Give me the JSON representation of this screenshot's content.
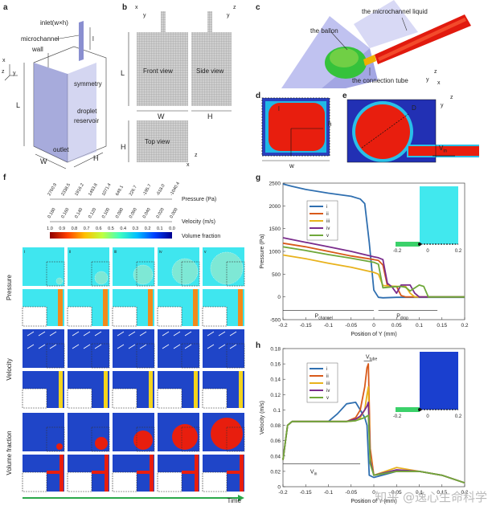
{
  "panel_letters": [
    "a",
    "b",
    "c",
    "d",
    "e",
    "f",
    "g",
    "h"
  ],
  "panel_a": {
    "labels": {
      "inlet": "inlet(w×h)",
      "microchannel": "microchannel",
      "wall": "wall",
      "symmetry": "symmetry",
      "droplet": "droplet",
      "reservoir": "reservoir",
      "outlet": "outlet",
      "L": "L",
      "l": "l",
      "W": "W",
      "H": "H",
      "ax_x": "x",
      "ax_z": "z",
      "ax_y": "y"
    }
  },
  "panel_b": {
    "front": "Front view",
    "side": "Side view",
    "top": "Top view",
    "L": "L",
    "W": "W",
    "H": "H",
    "H2": "H",
    "ax_x": "x",
    "ax_y": "y",
    "ax_z": "z",
    "ax_y2": "y",
    "ax_z2": "z",
    "ax_x2": "x"
  },
  "panel_c": {
    "liquid": "the microchannel liquid",
    "ballon": "the ballon",
    "tube": "the connection tube",
    "ax_z": "z",
    "ax_y": "y",
    "ax_x": "x"
  },
  "panel_d": {
    "l": "l",
    "h": "h",
    "w": "w"
  },
  "panel_e": {
    "D": "D",
    "Vin": "V",
    "Vin_sub": "in",
    "ax_z": "z",
    "ax_y": "y"
  },
  "panel_f": {
    "pressure_ticks": [
      "2760.9",
      "2338.5",
      "1916.2",
      "1493.8",
      "1071.4",
      "649.1",
      "226.7",
      "-195.7",
      "-618.0",
      "-1040.4"
    ],
    "pressure_label": "Pressure (Pa)",
    "velocity_ticks": [
      "0.180",
      "0.160",
      "0.140",
      "0.120",
      "0.100",
      "0.080",
      "0.060",
      "0.040",
      "0.020",
      "0.000"
    ],
    "velocity_label": "Velocity (m/s)",
    "vf_ticks": [
      "1.0",
      "0.9",
      "0.8",
      "0.7",
      "0.6",
      "0.5",
      "0.4",
      "0.3",
      "0.2",
      "0.1",
      "0.0"
    ],
    "vf_label": "Volume fraction",
    "row_labels": [
      "Pressure",
      "Velocity",
      "Volume fraction"
    ],
    "col_labels": [
      "i",
      "ii",
      "iii",
      "iv",
      "v"
    ],
    "time_label": "Time"
  },
  "panel_g_text": {
    "Pchannel": "P",
    "Pchannel_sub": "channel",
    "Pdrop": "P",
    "Pdrop_sub": "drop"
  },
  "panel_h_text": {
    "Vtube": "V",
    "Vtube_sub": "tube",
    "Vin": "V",
    "Vin_sub": "in"
  },
  "inset_ticks": [
    "-0.2",
    "0",
    "0.2"
  ],
  "colors": {
    "i": "#2f6fb0",
    "ii": "#d85a1a",
    "iii": "#e8b21c",
    "iv": "#7a2c8c",
    "v": "#6fa83a"
  },
  "watermark": "知乎 @逸心生命科学",
  "chart_data": [
    {
      "type": "line",
      "panel": "g",
      "xlabel": "Position of Y (mm)",
      "ylabel": "Pressure (Pa)",
      "xlim": [
        -0.2,
        0.2
      ],
      "ylim": [
        -500,
        2500
      ],
      "xticks": [
        "-0.2",
        "-0.15",
        "-0.1",
        "-0.05",
        "0",
        "0.05",
        "0.1",
        "0.15",
        "0.2"
      ],
      "yticks": [
        "-500",
        "0",
        "500",
        "1000",
        "1500",
        "2000",
        "2500"
      ],
      "legend": [
        "i",
        "ii",
        "iii",
        "iv",
        "v"
      ],
      "legend_position": "top-left",
      "series": [
        {
          "name": "i",
          "x": [
            -0.2,
            -0.18,
            -0.15,
            -0.1,
            -0.05,
            -0.03,
            -0.02,
            -0.01,
            0,
            0.01,
            0.02,
            0.05,
            0.1,
            0.15,
            0.2
          ],
          "y": [
            2480,
            2430,
            2360,
            2280,
            2210,
            2150,
            2050,
            1200,
            150,
            -10,
            -20,
            -10,
            -10,
            -10,
            -10
          ]
        },
        {
          "name": "ii",
          "x": [
            -0.2,
            -0.15,
            -0.1,
            -0.05,
            0,
            0.01,
            0.02,
            0.03,
            0.04,
            0.05,
            0.06,
            0.07,
            0.1,
            0.15,
            0.2
          ],
          "y": [
            1180,
            1100,
            1000,
            900,
            820,
            800,
            700,
            250,
            230,
            230,
            30,
            0,
            0,
            0,
            0
          ]
        },
        {
          "name": "iii",
          "x": [
            -0.2,
            -0.15,
            -0.1,
            -0.05,
            0,
            0.01,
            0.02,
            0.05,
            0.07,
            0.08,
            0.09,
            0.1,
            0.12,
            0.14,
            0.15,
            0.2
          ],
          "y": [
            920,
            840,
            740,
            650,
            540,
            500,
            250,
            230,
            230,
            80,
            0,
            0,
            0,
            0,
            0,
            0
          ]
        },
        {
          "name": "iv",
          "x": [
            -0.2,
            -0.15,
            -0.1,
            -0.05,
            0,
            0.01,
            0.02,
            0.03,
            0.04,
            0.05,
            0.06,
            0.08,
            0.09,
            0.1,
            0.11,
            0.15,
            0.2
          ],
          "y": [
            1300,
            1200,
            1100,
            1000,
            880,
            860,
            820,
            300,
            220,
            80,
            260,
            260,
            80,
            0,
            0,
            0,
            0
          ]
        },
        {
          "name": "v",
          "x": [
            -0.2,
            -0.15,
            -0.1,
            -0.05,
            0,
            0.01,
            0.02,
            0.04,
            0.06,
            0.07,
            0.08,
            0.1,
            0.11,
            0.12,
            0.15,
            0.2
          ],
          "y": [
            1100,
            1020,
            930,
            850,
            760,
            720,
            200,
            220,
            230,
            210,
            130,
            260,
            230,
            0,
            0,
            0
          ]
        }
      ],
      "annotations": [
        "P_channel",
        "P_drop"
      ]
    },
    {
      "type": "line",
      "panel": "h",
      "xlabel": "Position of Y (mm)",
      "ylabel": "Velocity (m/s)",
      "xlim": [
        -0.2,
        0.2
      ],
      "ylim": [
        0,
        0.18
      ],
      "xticks": [
        "-0.2",
        "-0.15",
        "-0.1",
        "-0.05",
        "0",
        "0.05",
        "0.1",
        "0.15",
        "0.2"
      ],
      "yticks": [
        "0",
        "0.02",
        "0.04",
        "0.06",
        "0.08",
        "0.1",
        "0.12",
        "0.14",
        "0.16",
        "0.18"
      ],
      "legend": [
        "i",
        "ii",
        "iii",
        "iv",
        "v"
      ],
      "legend_position": "top-left",
      "series": [
        {
          "name": "i",
          "x": [
            -0.2,
            -0.19,
            -0.18,
            -0.15,
            -0.1,
            -0.08,
            -0.06,
            -0.04,
            -0.03,
            -0.02,
            -0.015,
            -0.01,
            0,
            0.05,
            0.1,
            0.15,
            0.2
          ],
          "y": [
            0.035,
            0.08,
            0.085,
            0.085,
            0.085,
            0.095,
            0.108,
            0.11,
            0.1,
            0.09,
            0.08,
            0.015,
            0.012,
            0.02,
            0.02,
            0.015,
            0.005
          ]
        },
        {
          "name": "ii",
          "x": [
            -0.2,
            -0.19,
            -0.18,
            -0.15,
            -0.1,
            -0.06,
            -0.04,
            -0.03,
            -0.02,
            -0.015,
            -0.012,
            -0.008,
            0,
            0.05,
            0.1,
            0.15,
            0.2
          ],
          "y": [
            0.035,
            0.08,
            0.085,
            0.085,
            0.085,
            0.085,
            0.09,
            0.1,
            0.13,
            0.155,
            0.16,
            0.05,
            0.015,
            0.02,
            0.02,
            0.015,
            0.005
          ]
        },
        {
          "name": "iii",
          "x": [
            -0.2,
            -0.19,
            -0.18,
            -0.15,
            -0.1,
            -0.06,
            -0.04,
            -0.03,
            -0.02,
            -0.015,
            -0.012,
            -0.008,
            0,
            0.05,
            0.1,
            0.15,
            0.2
          ],
          "y": [
            0.035,
            0.08,
            0.085,
            0.085,
            0.085,
            0.085,
            0.086,
            0.09,
            0.1,
            0.12,
            0.13,
            0.04,
            0.015,
            0.025,
            0.02,
            0.015,
            0.005
          ]
        },
        {
          "name": "iv",
          "x": [
            -0.2,
            -0.19,
            -0.18,
            -0.15,
            -0.1,
            -0.06,
            -0.04,
            -0.03,
            -0.02,
            -0.015,
            -0.012,
            -0.008,
            0,
            0.05,
            0.1,
            0.15,
            0.2
          ],
          "y": [
            0.035,
            0.08,
            0.085,
            0.085,
            0.085,
            0.085,
            0.088,
            0.092,
            0.1,
            0.105,
            0.11,
            0.035,
            0.015,
            0.022,
            0.02,
            0.015,
            0.005
          ]
        },
        {
          "name": "v",
          "x": [
            -0.2,
            -0.19,
            -0.18,
            -0.15,
            -0.1,
            -0.06,
            -0.04,
            -0.03,
            -0.02,
            -0.015,
            -0.012,
            -0.008,
            0,
            0.05,
            0.1,
            0.15,
            0.2
          ],
          "y": [
            0.035,
            0.08,
            0.085,
            0.085,
            0.085,
            0.085,
            0.086,
            0.088,
            0.09,
            0.092,
            0.093,
            0.03,
            0.015,
            0.02,
            0.02,
            0.015,
            0.005
          ]
        }
      ],
      "annotations": [
        "V_tube",
        "V_in"
      ]
    }
  ]
}
